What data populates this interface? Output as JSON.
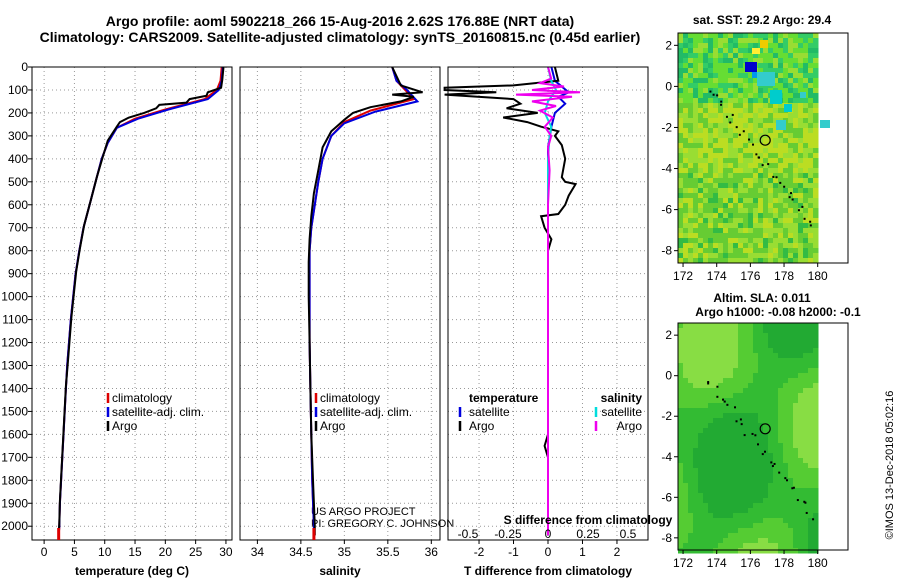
{
  "header": {
    "line1": "Argo profile: aoml 5902218_266 15-Aug-2016 2.62S 176.88E (NRT data)",
    "line2": "Climatology: CARS2009. Satellite-adjusted climatology: synTS_20160815.nc (0.45d earlier)"
  },
  "credits": {
    "project": "US ARGO PROJECT",
    "pi": "PI: GREGORY C. JOHNSON"
  },
  "stamp": "©IMOS 13-Dec-2018 05:02:16",
  "chart_data": [
    {
      "type": "line",
      "name": "temperature",
      "xlabel": "temperature (deg C)",
      "ylabel": "",
      "xlim": [
        -2,
        31
      ],
      "ylim": [
        2060,
        0
      ],
      "yreverse": true,
      "xticks": [
        0,
        5,
        10,
        15,
        20,
        25,
        30
      ],
      "yticks": [
        0,
        100,
        200,
        300,
        400,
        500,
        600,
        700,
        800,
        900,
        1000,
        1100,
        1200,
        1300,
        1400,
        1500,
        1600,
        1700,
        1800,
        1900,
        2000
      ],
      "legend": [
        "climatology",
        "satellite-adj. clim.",
        "Argo"
      ],
      "colors": [
        "#dd0000",
        "#0000dd",
        "#000000"
      ],
      "series": [
        {
          "name": "climatology",
          "points": [
            [
              29.3,
              0
            ],
            [
              29.1,
              60
            ],
            [
              28.5,
              100
            ],
            [
              26.5,
              140
            ],
            [
              20,
              185
            ],
            [
              15,
              225
            ],
            [
              12,
              265
            ],
            [
              10.5,
              330
            ],
            [
              9.5,
              400
            ],
            [
              8.5,
              500
            ],
            [
              7.5,
              600
            ],
            [
              6.5,
              700
            ],
            [
              5.8,
              800
            ],
            [
              5.2,
              900
            ],
            [
              4.8,
              1000
            ],
            [
              4.4,
              1100
            ],
            [
              4.1,
              1200
            ],
            [
              3.8,
              1300
            ],
            [
              3.6,
              1400
            ],
            [
              3.4,
              1500
            ],
            [
              3.2,
              1600
            ],
            [
              3.0,
              1700
            ],
            [
              2.8,
              1800
            ],
            [
              2.6,
              1900
            ],
            [
              2.5,
              2000
            ],
            [
              2.4,
              2040
            ]
          ]
        },
        {
          "name": "satellite-adj. clim.",
          "points": [
            [
              29.5,
              0
            ],
            [
              29.3,
              60
            ],
            [
              28.8,
              100
            ],
            [
              27,
              140
            ],
            [
              20.5,
              185
            ],
            [
              15.5,
              225
            ],
            [
              12,
              265
            ],
            [
              10.5,
              330
            ],
            [
              9.5,
              400
            ],
            [
              8.5,
              500
            ],
            [
              7.5,
              600
            ],
            [
              6.5,
              700
            ],
            [
              5.8,
              800
            ],
            [
              5.2,
              900
            ],
            [
              4.8,
              1000
            ],
            [
              4.4,
              1100
            ],
            [
              4.1,
              1200
            ],
            [
              3.8,
              1300
            ],
            [
              3.6,
              1400
            ],
            [
              3.4,
              1500
            ],
            [
              3.2,
              1600
            ],
            [
              3.0,
              1700
            ],
            [
              2.8,
              1800
            ],
            [
              2.6,
              1900
            ],
            [
              2.5,
              2000
            ],
            [
              2.4,
              2040
            ]
          ]
        },
        {
          "name": "Argo",
          "points": [
            [
              29.6,
              0
            ],
            [
              29.4,
              55
            ],
            [
              29.2,
              90
            ],
            [
              27,
              110
            ],
            [
              26.8,
              125
            ],
            [
              24,
              140
            ],
            [
              23.5,
              155
            ],
            [
              19,
              165
            ],
            [
              18.5,
              180
            ],
            [
              16.5,
              200
            ],
            [
              14,
              220
            ],
            [
              12.5,
              240
            ],
            [
              12,
              260
            ],
            [
              11.5,
              280
            ],
            [
              10.5,
              320
            ],
            [
              9.7,
              390
            ],
            [
              8.7,
              480
            ],
            [
              7.7,
              580
            ],
            [
              6.6,
              690
            ],
            [
              5.9,
              790
            ],
            [
              5.3,
              890
            ],
            [
              4.9,
              990
            ],
            [
              4.5,
              1090
            ],
            [
              4.2,
              1190
            ],
            [
              3.9,
              1290
            ],
            [
              3.6,
              1390
            ],
            [
              3.4,
              1490
            ],
            [
              3.2,
              1590
            ],
            [
              3.0,
              1690
            ],
            [
              2.8,
              1790
            ],
            [
              2.6,
              1890
            ],
            [
              2.5,
              1990
            ],
            [
              2.4,
              2030
            ]
          ]
        }
      ]
    },
    {
      "type": "line",
      "name": "salinity",
      "xlabel": "salinity",
      "xlim": [
        33.8,
        36.1
      ],
      "ylim": [
        2060,
        0
      ],
      "xticks": [
        34,
        34.5,
        35,
        35.5,
        36
      ],
      "xticklabels": [
        "34",
        "34.5",
        "35",
        "35.5",
        "36"
      ],
      "legend": [
        "climatology",
        "satellite-adj. clim.",
        "Argo"
      ],
      "series": [
        {
          "name": "climatology",
          "points": [
            [
              35.55,
              0
            ],
            [
              35.6,
              60
            ],
            [
              35.7,
              100
            ],
            [
              35.8,
              140
            ],
            [
              35.3,
              190
            ],
            [
              35.0,
              240
            ],
            [
              34.85,
              300
            ],
            [
              34.75,
              400
            ],
            [
              34.7,
              500
            ],
            [
              34.66,
              600
            ],
            [
              34.62,
              700
            ],
            [
              34.6,
              800
            ],
            [
              34.6,
              1000
            ],
            [
              34.6,
              1200
            ],
            [
              34.61,
              1400
            ],
            [
              34.62,
              1600
            ],
            [
              34.63,
              1800
            ],
            [
              34.65,
              2000
            ],
            [
              34.65,
              2040
            ]
          ]
        },
        {
          "name": "satellite-adj. clim.",
          "points": [
            [
              35.55,
              0
            ],
            [
              35.6,
              60
            ],
            [
              35.72,
              100
            ],
            [
              35.84,
              150
            ],
            [
              35.35,
              195
            ],
            [
              35.0,
              245
            ],
            [
              34.85,
              300
            ],
            [
              34.75,
              400
            ],
            [
              34.7,
              500
            ],
            [
              34.66,
              600
            ],
            [
              34.62,
              700
            ],
            [
              34.6,
              800
            ],
            [
              34.6,
              1000
            ],
            [
              34.6,
              1200
            ],
            [
              34.61,
              1400
            ],
            [
              34.62,
              1600
            ],
            [
              34.63,
              1800
            ],
            [
              34.65,
              2000
            ],
            [
              34.65,
              2040
            ]
          ]
        },
        {
          "name": "Argo",
          "points": [
            [
              35.55,
              0
            ],
            [
              35.6,
              40
            ],
            [
              35.65,
              80
            ],
            [
              35.9,
              110
            ],
            [
              35.55,
              120
            ],
            [
              35.8,
              130
            ],
            [
              35.65,
              150
            ],
            [
              35.3,
              175
            ],
            [
              35.1,
              200
            ],
            [
              35.0,
              230
            ],
            [
              34.85,
              280
            ],
            [
              34.75,
              350
            ],
            [
              34.7,
              450
            ],
            [
              34.65,
              550
            ],
            [
              34.62,
              650
            ],
            [
              34.6,
              750
            ],
            [
              34.59,
              850
            ],
            [
              34.59,
              1000
            ],
            [
              34.6,
              1200
            ],
            [
              34.61,
              1400
            ],
            [
              34.62,
              1600
            ],
            [
              34.64,
              1800
            ],
            [
              34.66,
              2000
            ],
            [
              34.66,
              2040
            ]
          ]
        }
      ]
    },
    {
      "type": "line",
      "name": "difference",
      "xlabel": "T difference from climatology",
      "xlabel2": "S difference from climatology",
      "xlim": [
        -2.9,
        2.9
      ],
      "ylim": [
        2060,
        0
      ],
      "xticks": [
        -2,
        -1,
        0,
        1,
        2
      ],
      "sticks": [
        -0.5,
        -0.25,
        0,
        0.25,
        0.5
      ],
      "sticklabels": [
        "-0.5",
        "-0.25",
        "0",
        "0.25",
        "0.5"
      ],
      "legend_left_title": "temperature",
      "legend_right_title": "salinity",
      "legend_left": [
        "satellite",
        "Argo"
      ],
      "legend_right": [
        "satellite",
        "Argo"
      ],
      "colors": [
        "#0000dd",
        "#000000",
        "#00dddd",
        "#ee00ee"
      ],
      "series": [
        {
          "name": "T satellite",
          "points": [
            [
              0.1,
              0
            ],
            [
              0.2,
              60
            ],
            [
              0.6,
              110
            ],
            [
              0.3,
              130
            ],
            [
              0.5,
              160
            ],
            [
              0.2,
              200
            ],
            [
              0.1,
              260
            ],
            [
              0,
              350
            ],
            [
              0,
              500
            ],
            [
              0,
              800
            ],
            [
              0,
              1200
            ],
            [
              0,
              1600
            ],
            [
              0,
              2000
            ],
            [
              0,
              2040
            ]
          ]
        },
        {
          "name": "T Argo",
          "points": [
            [
              0.2,
              0
            ],
            [
              0.3,
              60
            ],
            [
              -1,
              80
            ],
            [
              -3,
              90
            ],
            [
              -3,
              100
            ],
            [
              -1.5,
              110
            ],
            [
              -3,
              120
            ],
            [
              -1,
              140
            ],
            [
              -0.8,
              160
            ],
            [
              -1.2,
              180
            ],
            [
              -0.3,
              200
            ],
            [
              -1.3,
              220
            ],
            [
              -0.6,
              240
            ],
            [
              -0.2,
              260
            ],
            [
              0.3,
              280
            ],
            [
              0.2,
              300
            ],
            [
              0.4,
              340
            ],
            [
              0.5,
              400
            ],
            [
              0.4,
              480
            ],
            [
              0.5,
              500
            ],
            [
              0.8,
              510
            ],
            [
              0.6,
              560
            ],
            [
              0.5,
              600
            ],
            [
              0.3,
              640
            ],
            [
              -0.2,
              650
            ],
            [
              -0.1,
              700
            ],
            [
              0.1,
              750
            ],
            [
              0,
              800
            ],
            [
              0,
              1200
            ],
            [
              0,
              1600
            ],
            [
              -0.1,
              1650
            ],
            [
              0,
              1700
            ],
            [
              0,
              2040
            ]
          ]
        },
        {
          "name": "S satellite",
          "points": [
            [
              0,
              0
            ],
            [
              0.02,
              60
            ],
            [
              0.05,
              100
            ],
            [
              0,
              150
            ],
            [
              -0.02,
              200
            ],
            [
              0.02,
              260
            ],
            [
              0.01,
              300
            ],
            [
              0,
              400
            ],
            [
              0,
              800
            ],
            [
              0,
              1200
            ],
            [
              0,
              1600
            ],
            [
              0,
              2000
            ],
            [
              0,
              2040
            ]
          ]
        },
        {
          "name": "S Argo",
          "points": [
            [
              0,
              0
            ],
            [
              0.02,
              50
            ],
            [
              -0.05,
              70
            ],
            [
              0.1,
              85
            ],
            [
              -0.1,
              100
            ],
            [
              0.2,
              110
            ],
            [
              -0.2,
              120
            ],
            [
              0.15,
              130
            ],
            [
              -0.1,
              150
            ],
            [
              0.05,
              170
            ],
            [
              -0.05,
              190
            ],
            [
              0.03,
              220
            ],
            [
              -0.02,
              260
            ],
            [
              0.02,
              300
            ],
            [
              0,
              350
            ],
            [
              0.01,
              450
            ],
            [
              0,
              600
            ],
            [
              0,
              800
            ],
            [
              0,
              1200
            ],
            [
              0,
              1600
            ],
            [
              0,
              2000
            ],
            [
              0,
              2040
            ]
          ]
        }
      ]
    },
    {
      "type": "heatmap",
      "name": "sst-map",
      "title": "sat. SST: 29.2 Argo: 29.4",
      "xlim": [
        171.7,
        181.8
      ],
      "ylim": [
        -8.6,
        2.6
      ],
      "xticks": [
        172,
        174,
        176,
        178,
        180
      ],
      "yticks": [
        2,
        0,
        -2,
        -4,
        -6,
        -8
      ],
      "marker": [
        176.88,
        -2.62
      ]
    },
    {
      "type": "heatmap",
      "name": "sla-map",
      "title": "Altim. SLA: 0.011",
      "subtitle": "Argo h1000: -0.08 h2000: -0.1",
      "xlim": [
        171.7,
        181.8
      ],
      "ylim": [
        -8.6,
        2.6
      ],
      "xticks": [
        172,
        174,
        176,
        178,
        180
      ],
      "yticks": [
        2,
        0,
        -2,
        -4,
        -6,
        -8
      ],
      "marker": [
        176.88,
        -2.62
      ]
    }
  ]
}
